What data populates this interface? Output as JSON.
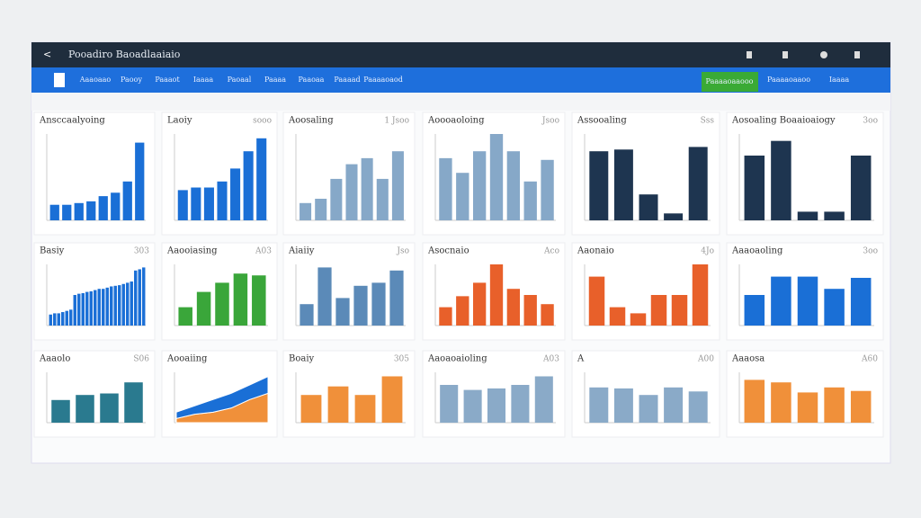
{
  "header": {
    "title": "Pooadiro Baoadlaaiaio"
  },
  "nav": {
    "items": [
      "Aaaoaao",
      "Paooy",
      "Paaaot",
      "Iaaaa",
      "Paoaal",
      "Paaaa",
      "Paaoaa",
      "Paaaad",
      "Paaaaoaod"
    ],
    "button": "Paaaaoaaooo",
    "right": [
      "Paaaaoaaoo",
      "Iaaaa"
    ]
  },
  "chart_data": [
    {
      "type": "bar",
      "title": "Ansccaalyoing",
      "color": "#1a6fd6",
      "values": [
        18,
        18,
        20,
        22,
        28,
        32,
        45,
        90
      ],
      "ylim": [
        0,
        100
      ]
    },
    {
      "type": "bar",
      "title": "Laoiy",
      "corner": "sooo",
      "color": "#1a6fd6",
      "values": [
        35,
        38,
        38,
        45,
        60,
        80,
        95
      ],
      "ylim": [
        0,
        100
      ]
    },
    {
      "type": "bar",
      "title": "Aoosaling",
      "corner": "1 Jsoo",
      "color": "#86a8c8",
      "values": [
        20,
        25,
        48,
        65,
        72,
        48,
        80
      ],
      "ylim": [
        0,
        100
      ]
    },
    {
      "type": "bar",
      "title": "Aoooaoloing",
      "corner": "Jsoo",
      "color": "#86a8c8",
      "values": [
        72,
        55,
        80,
        100,
        80,
        45,
        70
      ],
      "ylim": [
        0,
        100
      ]
    },
    {
      "type": "bar",
      "title": "Assooaling",
      "corner": "Sss",
      "color": "#1e3550",
      "values": [
        80,
        82,
        30,
        8,
        85
      ],
      "ylim": [
        0,
        100
      ]
    },
    {
      "type": "bar",
      "title": "Aosoaling Boaaioaiogy",
      "corner": "3oo",
      "color": "#1e3550",
      "values": [
        75,
        92,
        10,
        10,
        75
      ],
      "ylim": [
        0,
        100
      ]
    },
    {
      "type": "bar",
      "title": "Basiy",
      "corner": "303",
      "color": "#1a6fd6",
      "values": [
        18,
        20,
        20,
        22,
        24,
        26,
        50,
        52,
        53,
        55,
        56,
        58,
        60,
        60,
        62,
        64,
        65,
        66,
        68,
        70,
        72,
        90,
        92,
        95
      ],
      "ylim": [
        0,
        100
      ]
    },
    {
      "type": "bar",
      "title": "Aaooiasing",
      "corner": "A03",
      "color": "#3aa63a",
      "values": [
        30,
        55,
        70,
        85,
        82
      ],
      "ylim": [
        0,
        100
      ]
    },
    {
      "type": "bar",
      "title": "Aiaiiy",
      "corner": "Jso",
      "color": "#5b8ab8",
      "values": [
        35,
        95,
        45,
        65,
        70,
        90
      ],
      "ylim": [
        0,
        100
      ]
    },
    {
      "type": "bar",
      "title": "Asocnaio",
      "corner": "Aco",
      "color": "#e8602a",
      "values": [
        30,
        48,
        70,
        100,
        60,
        50,
        35
      ],
      "ylim": [
        0,
        100
      ]
    },
    {
      "type": "bar",
      "title": "Aaonaio",
      "corner": "4Jo",
      "color": "#e8602a",
      "values": [
        80,
        30,
        20,
        50,
        50,
        100
      ],
      "ylim": [
        0,
        100
      ]
    },
    {
      "type": "bar",
      "title": "Aaaoaoling",
      "corner": "3oo",
      "color": "#1a6fd6",
      "values": [
        50,
        80,
        80,
        60,
        78
      ],
      "ylim": [
        0,
        100
      ]
    },
    {
      "type": "bar",
      "title": "Aaaolo",
      "corner": "S06",
      "color": "#2a7a8f",
      "values": [
        45,
        55,
        58,
        80
      ],
      "ylim": [
        0,
        100
      ]
    },
    {
      "type": "area",
      "title": "Aooaiing",
      "series": [
        {
          "color": "#f0903a",
          "values": [
            10,
            20,
            25,
            35,
            55,
            70
          ]
        },
        {
          "color": "#1a6fd6",
          "values": [
            15,
            20,
            30,
            35,
            35,
            40
          ]
        }
      ],
      "ylim": [
        0,
        120
      ]
    },
    {
      "type": "bar",
      "title": "Boaiy",
      "corner": "305",
      "color": "#f0903a",
      "values": [
        55,
        72,
        55,
        92
      ],
      "ylim": [
        0,
        100
      ]
    },
    {
      "type": "bar",
      "title": "Aaoaoaioling",
      "corner": "A03",
      "color": "#8aaac8",
      "values": [
        75,
        65,
        68,
        75,
        92
      ],
      "ylim": [
        0,
        100
      ]
    },
    {
      "type": "bar",
      "title": "A",
      "corner": "A00",
      "color": "#8aaac8",
      "values": [
        70,
        68,
        55,
        70,
        62
      ],
      "ylim": [
        0,
        100
      ]
    },
    {
      "type": "bar",
      "title": "Aaaosa",
      "corner": "A60",
      "color": "#f0903a",
      "values": [
        85,
        80,
        60,
        70,
        63
      ],
      "ylim": [
        0,
        100
      ]
    }
  ]
}
